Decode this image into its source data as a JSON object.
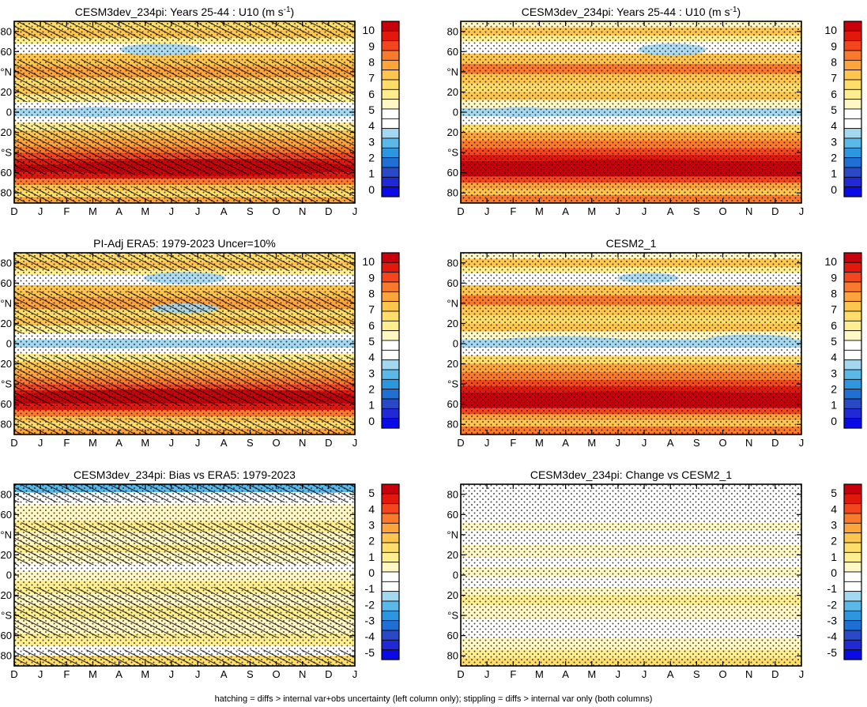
{
  "chart_data": [
    {
      "type": "heatmap",
      "title": "CESM3dev_234pi: Years 25-44 : U10 (m s",
      "title_sup": "-1",
      "title_tail": ")",
      "x_tick_labels": [
        "D",
        "J",
        "F",
        "M",
        "A",
        "M",
        "J",
        "J",
        "A",
        "S",
        "O",
        "N",
        "D",
        "J"
      ],
      "y_tick_labels": [
        "80",
        "60",
        "°N",
        "20",
        "0",
        "20",
        "°S",
        "60",
        "80"
      ],
      "y_tick_values": [
        80,
        60,
        40,
        20,
        0,
        -20,
        -40,
        -60,
        -80
      ],
      "ylim": [
        -90,
        90
      ],
      "colorbar_labels": [
        "10",
        "9",
        "8",
        "7",
        "6",
        "5",
        "4",
        "3",
        "2",
        "1",
        "0"
      ],
      "hatching": true,
      "stippling": true
    },
    {
      "type": "heatmap",
      "title": "CESM3dev_234pi: Years 25-44 : U10 (m s",
      "title_sup": "-1",
      "title_tail": ")",
      "x_tick_labels": [
        "D",
        "J",
        "F",
        "M",
        "A",
        "M",
        "J",
        "J",
        "A",
        "S",
        "O",
        "N",
        "D",
        "J"
      ],
      "y_tick_labels": [
        "80",
        "60",
        "°N",
        "20",
        "0",
        "20",
        "°S",
        "60",
        "80"
      ],
      "y_tick_values": [
        80,
        60,
        40,
        20,
        0,
        -20,
        -40,
        -60,
        -80
      ],
      "ylim": [
        -90,
        90
      ],
      "colorbar_labels": [
        "10",
        "9",
        "8",
        "7",
        "6",
        "5",
        "4",
        "3",
        "2",
        "1",
        "0"
      ],
      "hatching": false,
      "stippling": true
    },
    {
      "type": "heatmap",
      "title": "PI-Adj ERA5: 1979-2023 Uncer=10%",
      "x_tick_labels": [
        "D",
        "J",
        "F",
        "M",
        "A",
        "M",
        "J",
        "J",
        "A",
        "S",
        "O",
        "N",
        "D",
        "J"
      ],
      "y_tick_labels": [
        "80",
        "60",
        "°N",
        "20",
        "0",
        "20",
        "°S",
        "60",
        "80"
      ],
      "y_tick_values": [
        80,
        60,
        40,
        20,
        0,
        -20,
        -40,
        -60,
        -80
      ],
      "ylim": [
        -90,
        90
      ],
      "colorbar_labels": [
        "10",
        "9",
        "8",
        "7",
        "6",
        "5",
        "4",
        "3",
        "2",
        "1",
        "0"
      ],
      "hatching": true,
      "stippling": true
    },
    {
      "type": "heatmap",
      "title": "CESM2_1",
      "x_tick_labels": [
        "D",
        "J",
        "F",
        "M",
        "A",
        "M",
        "J",
        "J",
        "A",
        "S",
        "O",
        "N",
        "D",
        "J"
      ],
      "y_tick_labels": [
        "80",
        "60",
        "°N",
        "20",
        "0",
        "20",
        "°S",
        "60",
        "80"
      ],
      "y_tick_values": [
        80,
        60,
        40,
        20,
        0,
        -20,
        -40,
        -60,
        -80
      ],
      "ylim": [
        -90,
        90
      ],
      "colorbar_labels": [
        "10",
        "9",
        "8",
        "7",
        "6",
        "5",
        "4",
        "3",
        "2",
        "1",
        "0"
      ],
      "hatching": false,
      "stippling": true
    },
    {
      "type": "heatmap",
      "title": "CESM3dev_234pi: Bias vs ERA5: 1979-2023",
      "x_tick_labels": [
        "D",
        "J",
        "F",
        "M",
        "A",
        "M",
        "J",
        "J",
        "A",
        "S",
        "O",
        "N",
        "D",
        "J"
      ],
      "y_tick_labels": [
        "80",
        "60",
        "°N",
        "20",
        "0",
        "20",
        "°S",
        "60",
        "80"
      ],
      "y_tick_values": [
        80,
        60,
        40,
        20,
        0,
        -20,
        -40,
        -60,
        -80
      ],
      "ylim": [
        -90,
        90
      ],
      "colorbar_labels": [
        "5",
        "4",
        "3",
        "2",
        "1",
        "0",
        "-1",
        "-2",
        "-3",
        "-4",
        "-5"
      ],
      "hatching": true,
      "stippling": true
    },
    {
      "type": "heatmap",
      "title": "CESM3dev_234pi: Change vs CESM2_1",
      "x_tick_labels": [
        "D",
        "J",
        "F",
        "M",
        "A",
        "M",
        "J",
        "J",
        "A",
        "S",
        "O",
        "N",
        "D",
        "J"
      ],
      "y_tick_labels": [
        "80",
        "60",
        "°N",
        "20",
        "0",
        "20",
        "°S",
        "60",
        "80"
      ],
      "y_tick_values": [
        80,
        60,
        40,
        20,
        0,
        -20,
        -40,
        -60,
        -80
      ],
      "ylim": [
        -90,
        90
      ],
      "colorbar_labels": [
        "5",
        "4",
        "3",
        "2",
        "1",
        "0",
        "-1",
        "-2",
        "-3",
        "-4",
        "-5"
      ],
      "hatching": false,
      "stippling": true
    }
  ],
  "colors": {
    "scale": [
      "#c8000b",
      "#e2180d",
      "#f3461e",
      "#fa7a2d",
      "#fda43d",
      "#fec54f",
      "#ffdd6a",
      "#ffee90",
      "#fff7c4",
      "#ffffff",
      "#ffffff",
      "#a4d7f0",
      "#5bb9ea",
      "#2c97e0",
      "#1f6fd4",
      "#2a49c8",
      "#2129d6",
      "#0a0ae8"
    ]
  },
  "footnote": "hatching = diffs > internal var+obs uncertainty (left column only); stippling = diffs > internal var only (both columns)"
}
